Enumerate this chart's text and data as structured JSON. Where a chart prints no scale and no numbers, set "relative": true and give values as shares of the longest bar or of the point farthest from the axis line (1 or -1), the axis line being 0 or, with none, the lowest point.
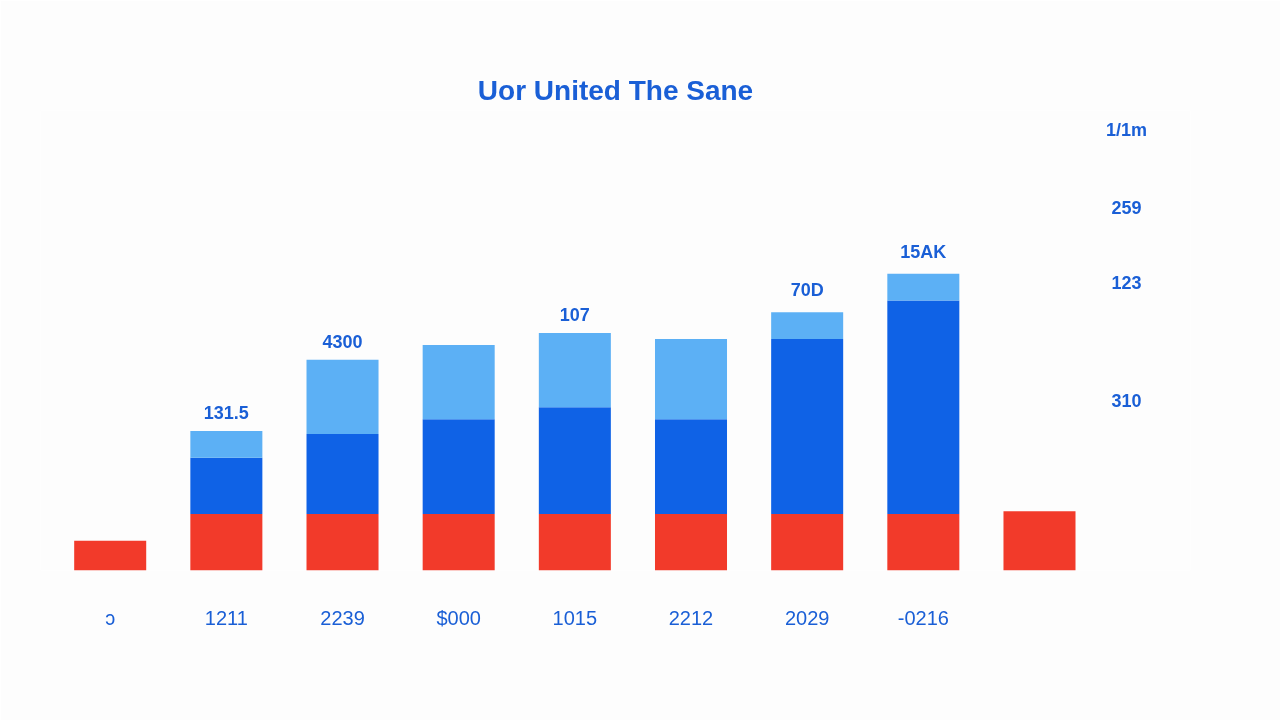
{
  "chart_data": {
    "type": "bar",
    "title": "Uor United The Sane",
    "stacked": true,
    "relative": true,
    "categories": [
      "ɔ",
      "1211",
      "2239",
      "$000",
      "1015",
      "2212",
      "2029",
      "-0216",
      null
    ],
    "series": [
      {
        "color": "#f23a2a",
        "values": [
          0.1,
          0.19,
          0.19,
          0.19,
          0.19,
          0.19,
          0.19,
          0.19,
          0.2
        ]
      },
      {
        "color": "#0f62e6",
        "values": [
          0,
          0.19,
          0.27,
          0.32,
          0.36,
          0.32,
          0.59,
          0.72,
          0
        ]
      },
      {
        "color": "#5cb0f5",
        "values": [
          0,
          0.09,
          0.25,
          0.25,
          0.25,
          0.27,
          0.09,
          0.09,
          0
        ]
      }
    ],
    "annotations": [
      "131.5",
      "4300",
      "107",
      "70D",
      "15AK",
      "1/1m",
      "259",
      "123",
      "310"
    ],
    "grid": false
  }
}
